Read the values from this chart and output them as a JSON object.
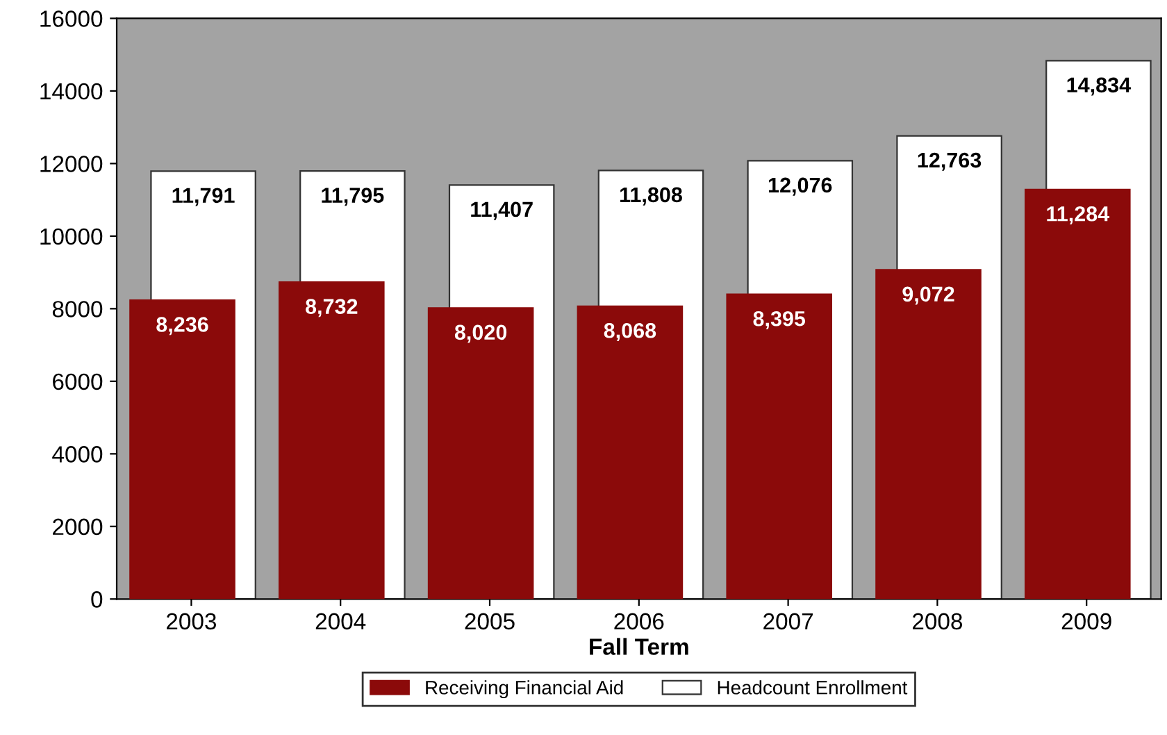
{
  "chart_data": {
    "type": "bar",
    "xlabel": "Fall Term",
    "categories": [
      "2003",
      "2004",
      "2005",
      "2006",
      "2007",
      "2008",
      "2009"
    ],
    "series": [
      {
        "name": "Headcount Enrollment",
        "color": "#ffffff",
        "values": [
          11791,
          11795,
          11407,
          11808,
          12076,
          12763,
          14834
        ],
        "value_labels": [
          "11,791",
          "11,795",
          "11,407",
          "11,808",
          "12,076",
          "12,763",
          "14,834"
        ]
      },
      {
        "name": "Receiving Financial Aid",
        "color": "#8b0a0a",
        "values": [
          8236,
          8732,
          8020,
          8068,
          8395,
          9072,
          11284
        ],
        "value_labels": [
          "8,236",
          "8,732",
          "8,020",
          "8,068",
          "8,395",
          "9,072",
          "11,284"
        ]
      }
    ],
    "ylim": [
      0,
      16000
    ],
    "yticks": [
      0,
      2000,
      4000,
      6000,
      8000,
      10000,
      12000,
      14000,
      16000
    ],
    "grid": false,
    "legend": "bottom"
  }
}
